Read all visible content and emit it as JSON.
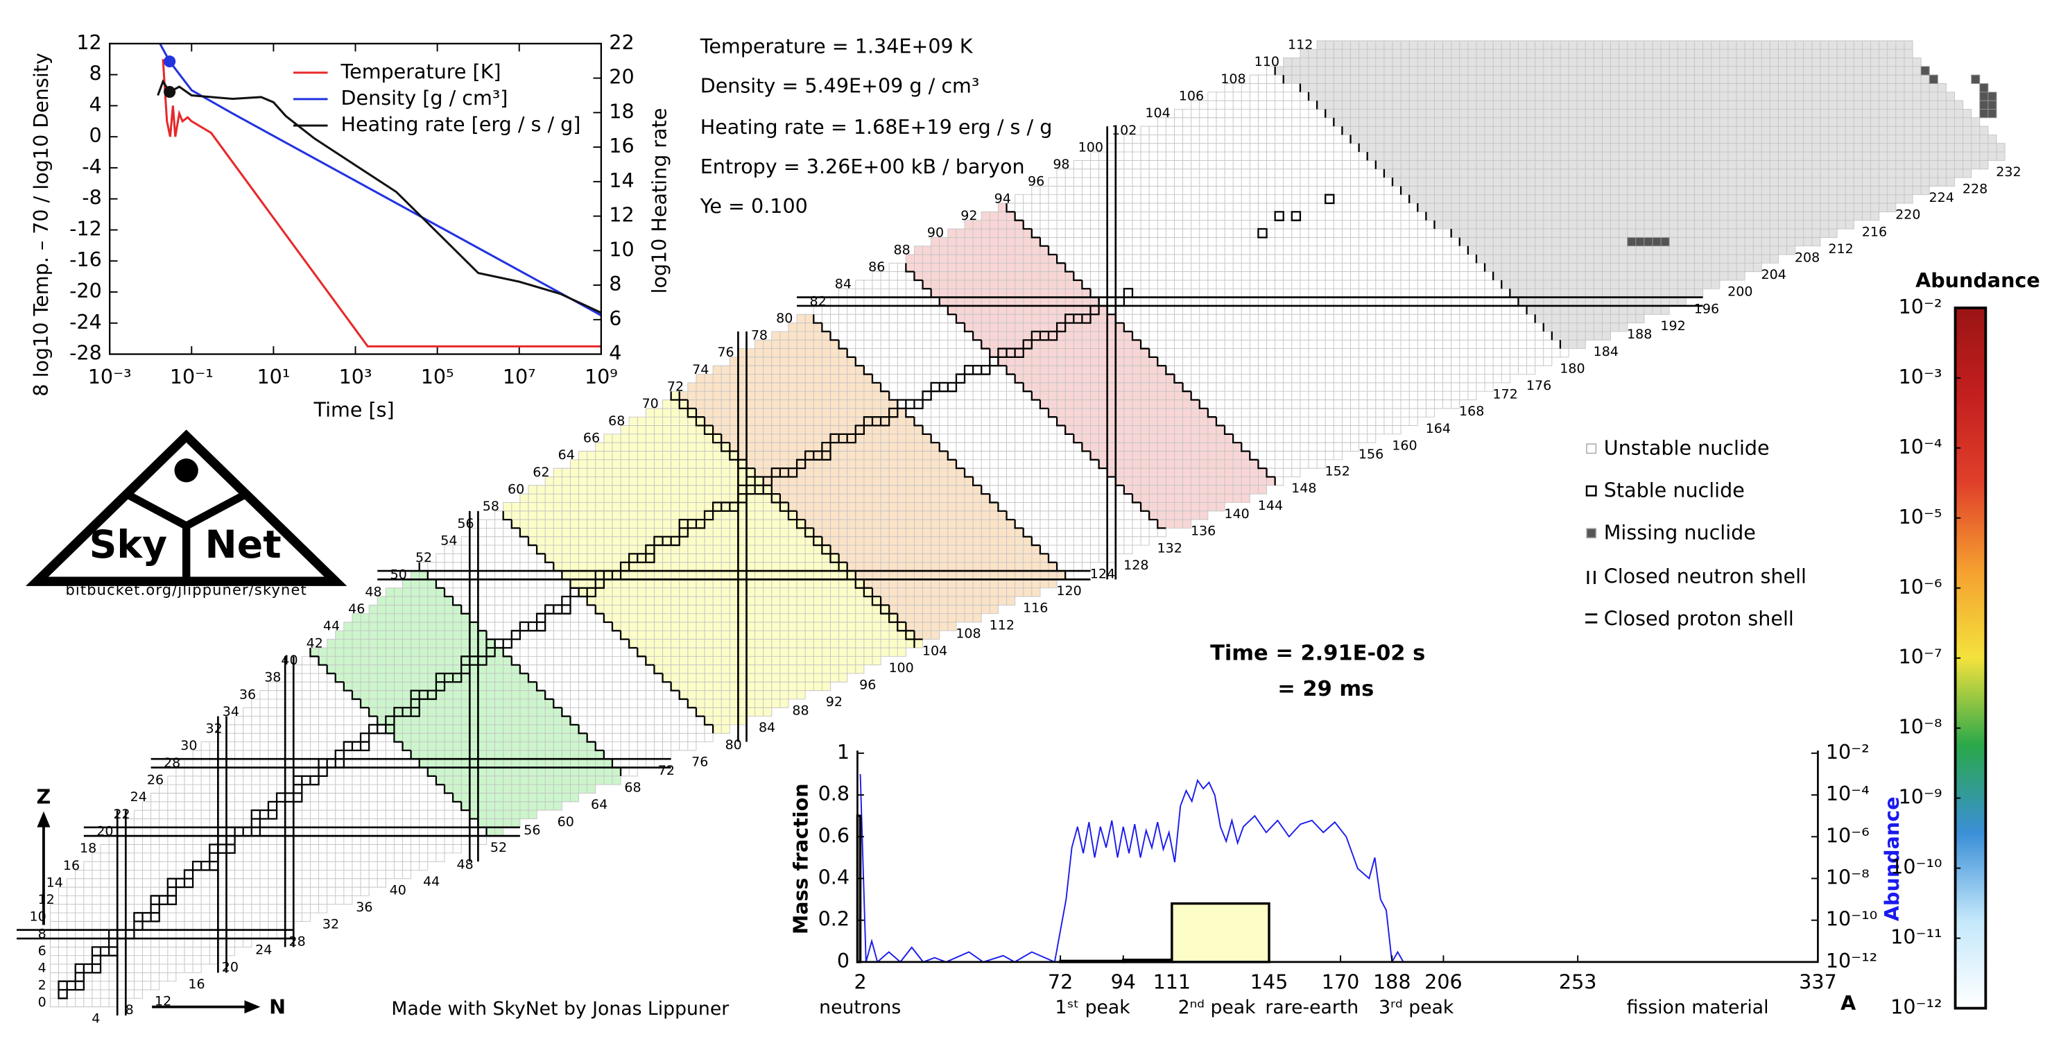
{
  "chart_data": [
    {
      "type": "line",
      "x_label": "Time [s]",
      "y_label": "8 log10 Temp. – 70 / log10 Density",
      "y2_label": "log10 Heating rate",
      "xscale": "log",
      "xlim": [
        0.001,
        1000000000.0
      ],
      "xticks": [
        {
          "value": 0.001,
          "label": "10⁻³"
        },
        {
          "value": 0.1,
          "label": "10⁻¹"
        },
        {
          "value": 10,
          "label": "10¹"
        },
        {
          "value": 1000,
          "label": "10³"
        },
        {
          "value": 100000,
          "label": "10⁵"
        },
        {
          "value": 10000000,
          "label": "10⁷"
        },
        {
          "value": 1000000000,
          "label": "10⁹"
        }
      ],
      "ylim": [
        -28,
        12
      ],
      "yticks": [
        -28,
        -24,
        -20,
        -16,
        -12,
        -8,
        -4,
        0,
        4,
        8,
        12
      ],
      "y2lim": [
        4,
        22
      ],
      "y2ticks": [
        4,
        6,
        8,
        10,
        12,
        14,
        16,
        18,
        20,
        22
      ],
      "legend": "upper right",
      "current_x": 0.0291,
      "series": [
        {
          "name": "Temperature [K]",
          "color": "#e8282b",
          "x": [
            0.02,
            0.025,
            0.03,
            0.035,
            0.04,
            0.05,
            0.06,
            0.08,
            0.1,
            0.3,
            2000,
            1000000000
          ],
          "values": [
            10,
            2,
            0,
            4,
            0,
            3,
            2,
            2.5,
            2,
            0.5,
            -27,
            -27
          ]
        },
        {
          "name": "Density [g / cm³]",
          "color": "#2233e0",
          "x": [
            0.015,
            0.0291,
            0.1,
            1,
            1000000000
          ],
          "values": [
            12.5,
            9.7,
            6,
            3,
            -23
          ],
          "marker_value": 9.7
        },
        {
          "name": "Heating rate [erg / s / g]",
          "color": "#111111",
          "axis": "y2",
          "x": [
            0.015,
            0.02,
            0.0291,
            0.05,
            0.1,
            1,
            5,
            10,
            20,
            100,
            10000,
            1000000,
            10000000,
            100000000,
            1000000000
          ],
          "values": [
            19,
            19.8,
            19.2,
            19.5,
            19,
            18.8,
            18.9,
            18.6,
            17.8,
            16.5,
            13.4,
            8.7,
            8.2,
            7.5,
            6.4
          ],
          "marker_value": 19.2
        }
      ]
    },
    {
      "type": "histogram",
      "x_label": "A",
      "y_label": "Mass fraction",
      "y2_label": "Abundance",
      "xlim": [
        1,
        337
      ],
      "xticks": [
        2,
        72,
        94,
        111,
        145,
        170,
        188,
        206,
        253,
        337
      ],
      "ylim": [
        0,
        1
      ],
      "yticks": [
        0,
        0.2,
        0.4,
        0.6,
        0.8,
        1
      ],
      "y2scale": "log",
      "y2lim": [
        1e-12,
        0.01
      ],
      "y2ticks": [
        {
          "value": 0.01,
          "label": "10⁻²"
        },
        {
          "value": 0.0001,
          "label": "10⁻⁴"
        },
        {
          "value": 1e-06,
          "label": "10⁻⁶"
        },
        {
          "value": 1e-08,
          "label": "10⁻⁸"
        },
        {
          "value": 1e-10,
          "label": "10⁻¹⁰"
        },
        {
          "value": 1e-12,
          "label": "10⁻¹²"
        }
      ],
      "bins": [
        1,
        2,
        72,
        94,
        111,
        145
      ],
      "values": [
        0.7,
        0,
        0.005,
        0.01,
        0.28
      ],
      "bar_colors": [
        "#ffffff",
        "#ffffff",
        "#ffffff",
        "#ffffff",
        "#fdfdc8"
      ],
      "regions": [
        "neutrons",
        "1ˢᵗ peak",
        "2ⁿᵈ peak",
        "rare-earth",
        "3ʳᵈ peak",
        "fission material"
      ],
      "series": [
        {
          "name": "Abundance",
          "color": "#1a1aee",
          "axis": "y2",
          "x": [
            2,
            4,
            6,
            8,
            12,
            16,
            20,
            24,
            28,
            32,
            40,
            45,
            52,
            56,
            62,
            70,
            74,
            76,
            78,
            80,
            82,
            84,
            86,
            88,
            90,
            92,
            94,
            96,
            98,
            100,
            102,
            104,
            106,
            108,
            110,
            112,
            114,
            116,
            118,
            120,
            122,
            124,
            126,
            128,
            130,
            132,
            134,
            136,
            140,
            144,
            148,
            152,
            156,
            160,
            164,
            168,
            172,
            176,
            180,
            182,
            184,
            186,
            188,
            190,
            192
          ],
          "values": [
            0.001,
            1e-12,
            1e-11,
            1e-12,
            3e-12,
            1e-12,
            5e-12,
            1e-12,
            1.6e-12,
            1e-12,
            3e-12,
            1e-12,
            2e-12,
            1e-12,
            3e-12,
            1e-12,
            1e-09,
            3e-07,
            3e-06,
            1.6e-07,
            5e-06,
            1e-07,
            3e-06,
            3e-07,
            6e-06,
            1e-07,
            3e-06,
            1.6e-07,
            4e-06,
            1e-07,
            2e-06,
            3e-07,
            5e-06,
            2.5e-07,
            1.6e-06,
            6e-08,
            3e-05,
            0.00016,
            5e-05,
            0.0005,
            0.0002,
            0.0004,
            0.0001,
            3e-06,
            6e-07,
            6e-06,
            5e-07,
            3e-06,
            1e-05,
            1.6e-06,
            6e-06,
            1e-06,
            4e-06,
            6e-06,
            1.6e-06,
            5e-06,
            1e-06,
            3e-08,
            1e-08,
            1e-07,
            1e-09,
            3e-10,
            1e-12,
            3e-12,
            1e-12
          ]
        }
      ]
    }
  ],
  "info": {
    "lines": [
      "Temperature = 1.34E+09 K",
      "Density = 5.49E+09 g / cm³",
      "Heating rate = 1.68E+19 erg / s / g",
      "Entropy = 3.26E+00 kB / baryon",
      "Ye = 0.100"
    ]
  },
  "time": {
    "seconds": "Time = 2.91E-02 s",
    "milliseconds": "= 29 ms"
  },
  "logo": {
    "left": "Sky",
    "right": "Net",
    "url": "bitbucket.org/jlippuner/skynet"
  },
  "credit": "Made with SkyNet by Jonas Lippuner",
  "nuclide_chart": {
    "z_axis": "Z",
    "n_axis": "N",
    "z_labels": [
      0,
      2,
      4,
      6,
      8,
      10,
      12,
      14,
      16,
      18,
      20,
      22,
      24,
      26,
      28,
      30,
      32,
      34,
      36,
      38,
      40,
      42,
      44,
      46,
      48,
      50,
      52,
      54,
      56,
      58,
      60,
      62,
      64,
      66,
      68,
      70,
      72,
      74,
      76,
      78,
      80,
      82,
      84,
      86,
      88,
      90,
      92,
      94,
      96,
      98,
      100,
      102,
      104,
      106,
      108,
      110,
      112
    ],
    "n_labels": [
      4,
      8,
      12,
      16,
      20,
      24,
      28,
      32,
      36,
      40,
      44,
      48,
      52,
      56,
      60,
      64,
      68,
      72,
      76,
      80,
      84,
      88,
      92,
      96,
      100,
      104,
      108,
      112,
      116,
      120,
      124,
      128,
      132,
      136,
      140,
      144,
      148,
      152,
      156,
      160,
      164,
      168,
      172,
      176,
      180,
      184,
      188,
      192,
      196,
      200,
      204,
      208,
      212,
      216,
      220,
      224,
      228,
      232
    ],
    "closed_shells": {
      "neutron": [
        8,
        20,
        28,
        50,
        82,
        126
      ],
      "proton": [
        8,
        20,
        28,
        50,
        82
      ]
    },
    "bands": [
      {
        "a_min": 72,
        "a_max": 94,
        "color": "#ccf5cc"
      },
      {
        "a_min": 111,
        "a_max": 145,
        "color": "#fdfdc8"
      },
      {
        "a_min": 145,
        "a_max": 170,
        "color": "#fbe3c8"
      },
      {
        "a_min": 188,
        "a_max": 206,
        "color": "#f8d6d6"
      }
    ],
    "legend": [
      "Unstable nuclide",
      "Stable nuclide",
      "Missing nuclide",
      "Closed neutron shell",
      "Closed proton shell"
    ]
  },
  "colorbar": {
    "title": "Abundance",
    "lim": [
      1e-12,
      0.01
    ],
    "colors": [
      "#ffffff",
      "#c4e8fb",
      "#3b8fd8",
      "#2aa84a",
      "#f4e23c",
      "#f5a030",
      "#e0402a",
      "#c41f1f",
      "#9a1414"
    ],
    "ticks": [
      {
        "value": 0.01,
        "label": "10⁻²"
      },
      {
        "value": 0.001,
        "label": "10⁻³"
      },
      {
        "value": 0.0001,
        "label": "10⁻⁴"
      },
      {
        "value": 1e-05,
        "label": "10⁻⁵"
      },
      {
        "value": 1e-06,
        "label": "10⁻⁶"
      },
      {
        "value": 1e-07,
        "label": "10⁻⁷"
      },
      {
        "value": 1e-08,
        "label": "10⁻⁸"
      },
      {
        "value": 1e-09,
        "label": "10⁻⁹"
      },
      {
        "value": 1e-10,
        "label": "10⁻¹⁰"
      },
      {
        "value": 1e-11,
        "label": "10⁻¹¹"
      },
      {
        "value": 1e-12,
        "label": "10⁻¹²"
      }
    ]
  }
}
